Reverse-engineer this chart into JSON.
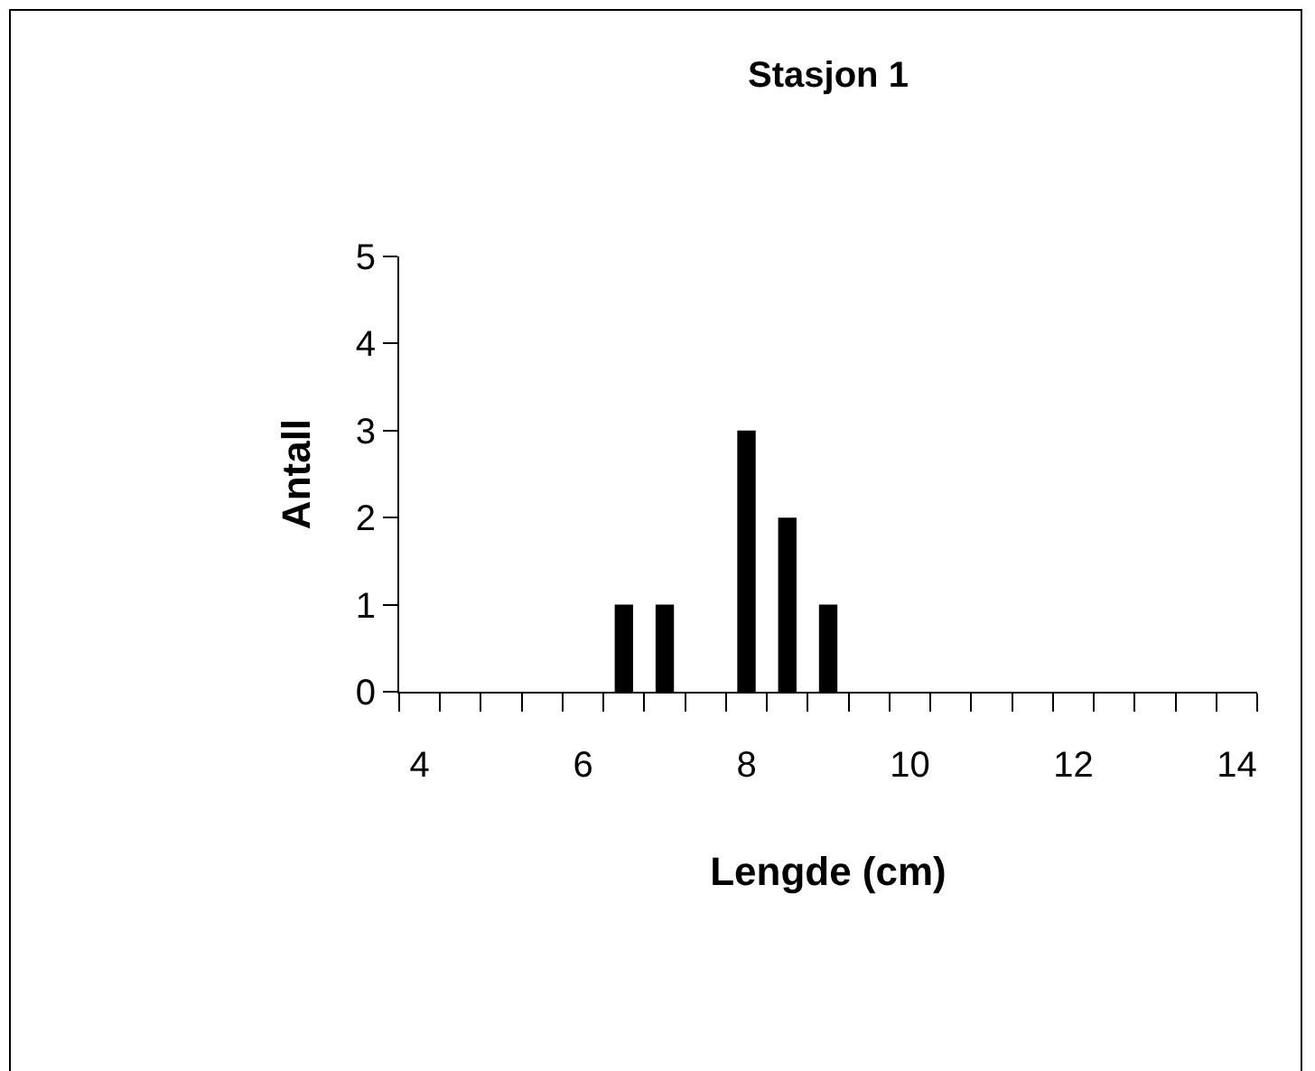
{
  "chart_data": {
    "type": "bar",
    "title": "Stasjon 1",
    "xlabel": "Lengde (cm)",
    "ylabel": "Antall",
    "categories": [
      "4",
      null,
      null,
      null,
      "6",
      null,
      null,
      null,
      "8",
      null,
      null,
      null,
      "10",
      null,
      null,
      null,
      "12",
      null,
      null,
      null,
      "14"
    ],
    "values": [
      null,
      null,
      null,
      null,
      null,
      1,
      1,
      null,
      3,
      2,
      1,
      null,
      null,
      null,
      null,
      null,
      null,
      null,
      null,
      null,
      null
    ],
    "color": "#000000",
    "ylim": [
      0,
      5
    ],
    "yticks": [
      0,
      1,
      2,
      3,
      4,
      5
    ],
    "grid": false,
    "legend": false
  }
}
